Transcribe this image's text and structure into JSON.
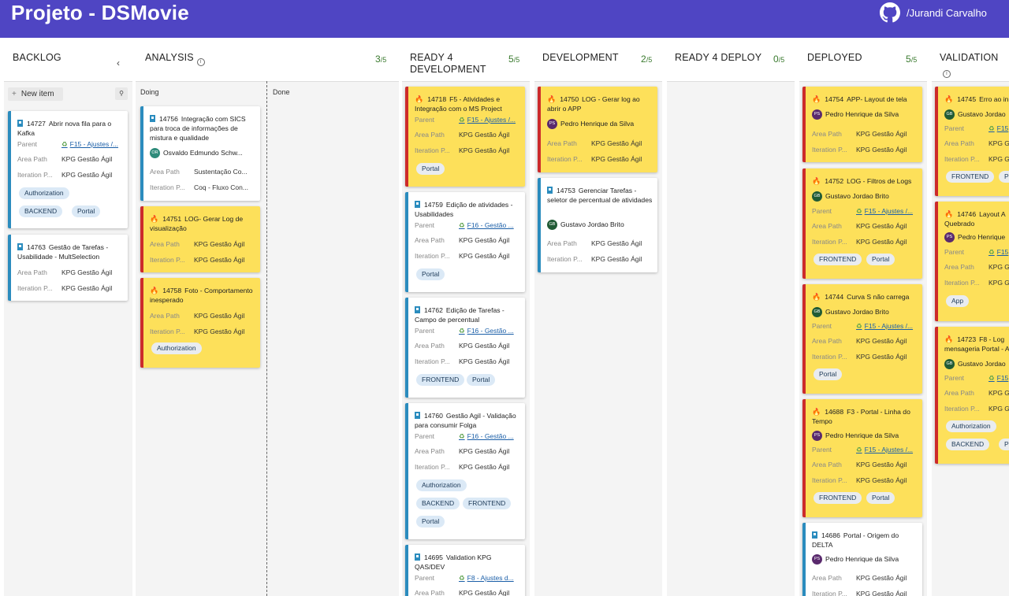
{
  "header": {
    "title": "Projeto - DSMovie",
    "user_name": "Jurandi Carvalho",
    "github_icon": "github-icon"
  },
  "labels": {
    "area_path": "Area Path",
    "iteration": "Iteration P...",
    "parent": "Parent",
    "new_item": "New item",
    "doing": "Doing",
    "done": "Done",
    "slash5": "/5"
  },
  "columns": [
    {
      "name": "BACKLOG"
    },
    {
      "name": "ANALYSIS",
      "count": "3"
    },
    {
      "name": "READY 4 DEVELOPMENT",
      "count": "5"
    },
    {
      "name": "DEVELOPMENT",
      "count": "2"
    },
    {
      "name": "READY 4 DEPLOY",
      "count": "0"
    },
    {
      "name": "DEPLOYED",
      "count": "5"
    },
    {
      "name": "VALIDATION"
    }
  ],
  "cards": {
    "c14727": {
      "id": "14727",
      "title": "Abrir nova fila para o Kafka",
      "parent": "F15 - Ajustes /...",
      "area": "KPG Gestão Ágil",
      "iter": "KPG Gestão Ágil",
      "tags": [
        "Authorization",
        "BACKEND",
        "Portal"
      ]
    },
    "c14763": {
      "id": "14763",
      "title": "Gestão de Tarefas - Usabilidade - MultSelection",
      "area": "KPG Gestão Ágil",
      "iter": "KPG Gestão Ágil"
    },
    "c14756": {
      "id": "14756",
      "title": "Integração com SICS para troca de informações de mistura e qualidade",
      "person": "Osvaldo Edmundo Schw...",
      "initials": "OR",
      "area": "Sustentação Co...",
      "iter": "Coq - Fluxo Con..."
    },
    "c14751": {
      "id": "14751",
      "title": "LOG- Gerar Log de visualização",
      "area": "KPG Gestão Ágil",
      "iter": "KPG Gestão Ágil"
    },
    "c14758": {
      "id": "14758",
      "title": "Foto - Comportamento inesperado",
      "area": "KPG Gestão Ágil",
      "iter": "KPG Gestão Ágil",
      "tags": [
        "Authorization"
      ]
    },
    "c14718": {
      "id": "14718",
      "title": "F5 - Atividades e Integração com o MS Project",
      "parent": "F15 - Ajustes /...",
      "area": "KPG Gestão Ágil",
      "iter": "KPG Gestão Ágil",
      "tags": [
        "Portal"
      ]
    },
    "c14759": {
      "id": "14759",
      "title": "Edição de atividades - Usabilidades",
      "parent": "F16 - Gestão ...",
      "area": "KPG Gestão Ágil",
      "iter": "KPG Gestão Ágil",
      "tags": [
        "Portal"
      ]
    },
    "c14762": {
      "id": "14762",
      "title": "Edição de Tarefas - Campo de percentual",
      "parent": "F16 - Gestão ...",
      "area": "KPG Gestão Ágil",
      "iter": "KPG Gestão Ágil",
      "tags": [
        "FRONTEND",
        "Portal"
      ]
    },
    "c14760": {
      "id": "14760",
      "title": "Gestão Agil - Validação para consumir Folga",
      "parent": "F16 - Gestão ...",
      "area": "KPG Gestão Ágil",
      "iter": "KPG Gestão Ágil",
      "tags": [
        "Authorization",
        "BACKEND",
        "FRONTEND",
        "Portal"
      ]
    },
    "c14695": {
      "id": "14695",
      "title": "Validation KPG QAS/DEV",
      "parent": "F8 - Ajustes d...",
      "area": "KPG Gestão Ágil"
    },
    "c14750": {
      "id": "14750",
      "title": "LOG - Gerar log ao abrir o APP",
      "person": "Pedro Henrique da Silva",
      "initials": "PS",
      "area": "KPG Gestão Ágil",
      "iter": "KPG Gestão Ágil"
    },
    "c14753": {
      "id": "14753",
      "title": "Gerenciar Tarefas - seletor de percentual de atividades",
      "person": "Gustavo Jordao Brito",
      "initials": "GB",
      "area": "KPG Gestão Ágil",
      "iter": "KPG Gestão Ágil"
    },
    "c14754": {
      "id": "14754",
      "title": "APP- Layout de tela",
      "person": "Pedro Henrique da Silva",
      "initials": "PS",
      "area": "KPG Gestão Ágil",
      "iter": "KPG Gestão Ágil"
    },
    "c14752": {
      "id": "14752",
      "title": "LOG - Filtros de Logs",
      "person": "Gustavo Jordao Brito",
      "initials": "GB",
      "parent": "F15 - Ajustes /...",
      "area": "KPG Gestão Ágil",
      "iter": "KPG Gestão Ágil",
      "tags": [
        "FRONTEND",
        "Portal"
      ]
    },
    "c14744": {
      "id": "14744",
      "title": "Curva S não carrega",
      "person": "Gustavo Jordao Brito",
      "initials": "GB",
      "parent": "F15 - Ajustes /...",
      "area": "KPG Gestão Ágil",
      "iter": "KPG Gestão Ágil",
      "tags": [
        "Portal"
      ]
    },
    "c14688": {
      "id": "14688",
      "title": "F3 - Portal - Linha do Tempo",
      "person": "Pedro Henrique da Silva",
      "initials": "PS",
      "parent": "F15 - Ajustes /...",
      "area": "KPG Gestão Ágil",
      "iter": "KPG Gestão Ágil",
      "tags": [
        "FRONTEND",
        "Portal"
      ]
    },
    "c14686": {
      "id": "14686",
      "title": "Portal - Origem do DELTA",
      "person": "Pedro Henrique da Silva",
      "initials": "PS",
      "area": "KPG Gestão Ágil",
      "iter": "KPG Gestão Ágil"
    },
    "c14745": {
      "id": "14745",
      "title": "Erro ao in",
      "person": "Gustavo Jordao",
      "initials": "GB",
      "parent": "F15",
      "area": "KPG G",
      "iter": "KPG G",
      "tags": [
        "FRONTEND",
        "Por"
      ]
    },
    "c14746": {
      "id": "14746",
      "title": "Layout A Quebrado",
      "person": "Pedro Henrique",
      "initials": "PS",
      "parent": "F15",
      "area": "KPG G",
      "iter": "KPG G",
      "tags": [
        "App"
      ]
    },
    "c14723": {
      "id": "14723",
      "title": "F8 - Log mensageria Portal - A",
      "person": "Gustavo Jordao",
      "initials": "GB",
      "parent": "F15",
      "area": "KPG G",
      "iter": "KPG G",
      "tags": [
        "Authorization",
        "BACKEND",
        "Port"
      ]
    }
  }
}
